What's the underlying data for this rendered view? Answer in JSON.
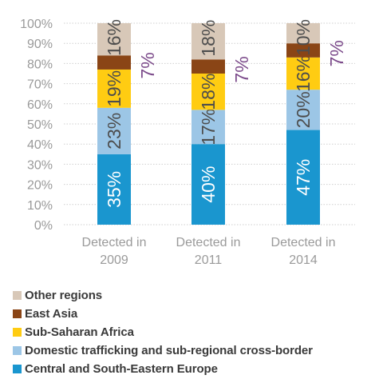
{
  "chart_data": {
    "type": "bar",
    "stacked": true,
    "categories": [
      "Detected in 2009",
      "Detected in 2011",
      "Detected in 2014"
    ],
    "category_lines": [
      [
        "Detected in",
        "2009"
      ],
      [
        "Detected in",
        "2011"
      ],
      [
        "Detected in",
        "2014"
      ]
    ],
    "series": [
      {
        "name": "Central and South-Eastern Europe",
        "values": [
          35,
          40,
          47
        ],
        "labels": [
          "35%",
          "40%",
          "47%"
        ],
        "color": "#1a96cf"
      },
      {
        "name": "Domestic trafficking and sub-regional cross-border",
        "values": [
          23,
          17,
          20
        ],
        "labels": [
          "23%",
          "17%",
          "20%"
        ],
        "color": "#9cc6e6"
      },
      {
        "name": "Sub-Saharan Africa",
        "values": [
          19,
          18,
          16
        ],
        "labels": [
          "19%",
          "18%",
          "16%"
        ],
        "color": "#ffcc12"
      },
      {
        "name": "East Asia",
        "values": [
          7,
          7,
          7
        ],
        "labels": [
          "7%",
          "7%",
          "7%"
        ],
        "color": "#8a4516"
      },
      {
        "name": "Other regions",
        "values": [
          16,
          18,
          10
        ],
        "labels": [
          "16%",
          "18%",
          "10%"
        ],
        "color": "#d8c8b8"
      }
    ],
    "ylim": [
      0,
      100
    ],
    "yticks": [
      "0%",
      "10%",
      "20%",
      "30%",
      "40%",
      "50%",
      "60%",
      "70%",
      "80%",
      "90%",
      "100%"
    ],
    "grid": true,
    "legend_position": "bottom",
    "label_colors": {
      "light": "#ffffff",
      "dark": "#4d4d4d",
      "outside": "#7b4a8a"
    }
  }
}
